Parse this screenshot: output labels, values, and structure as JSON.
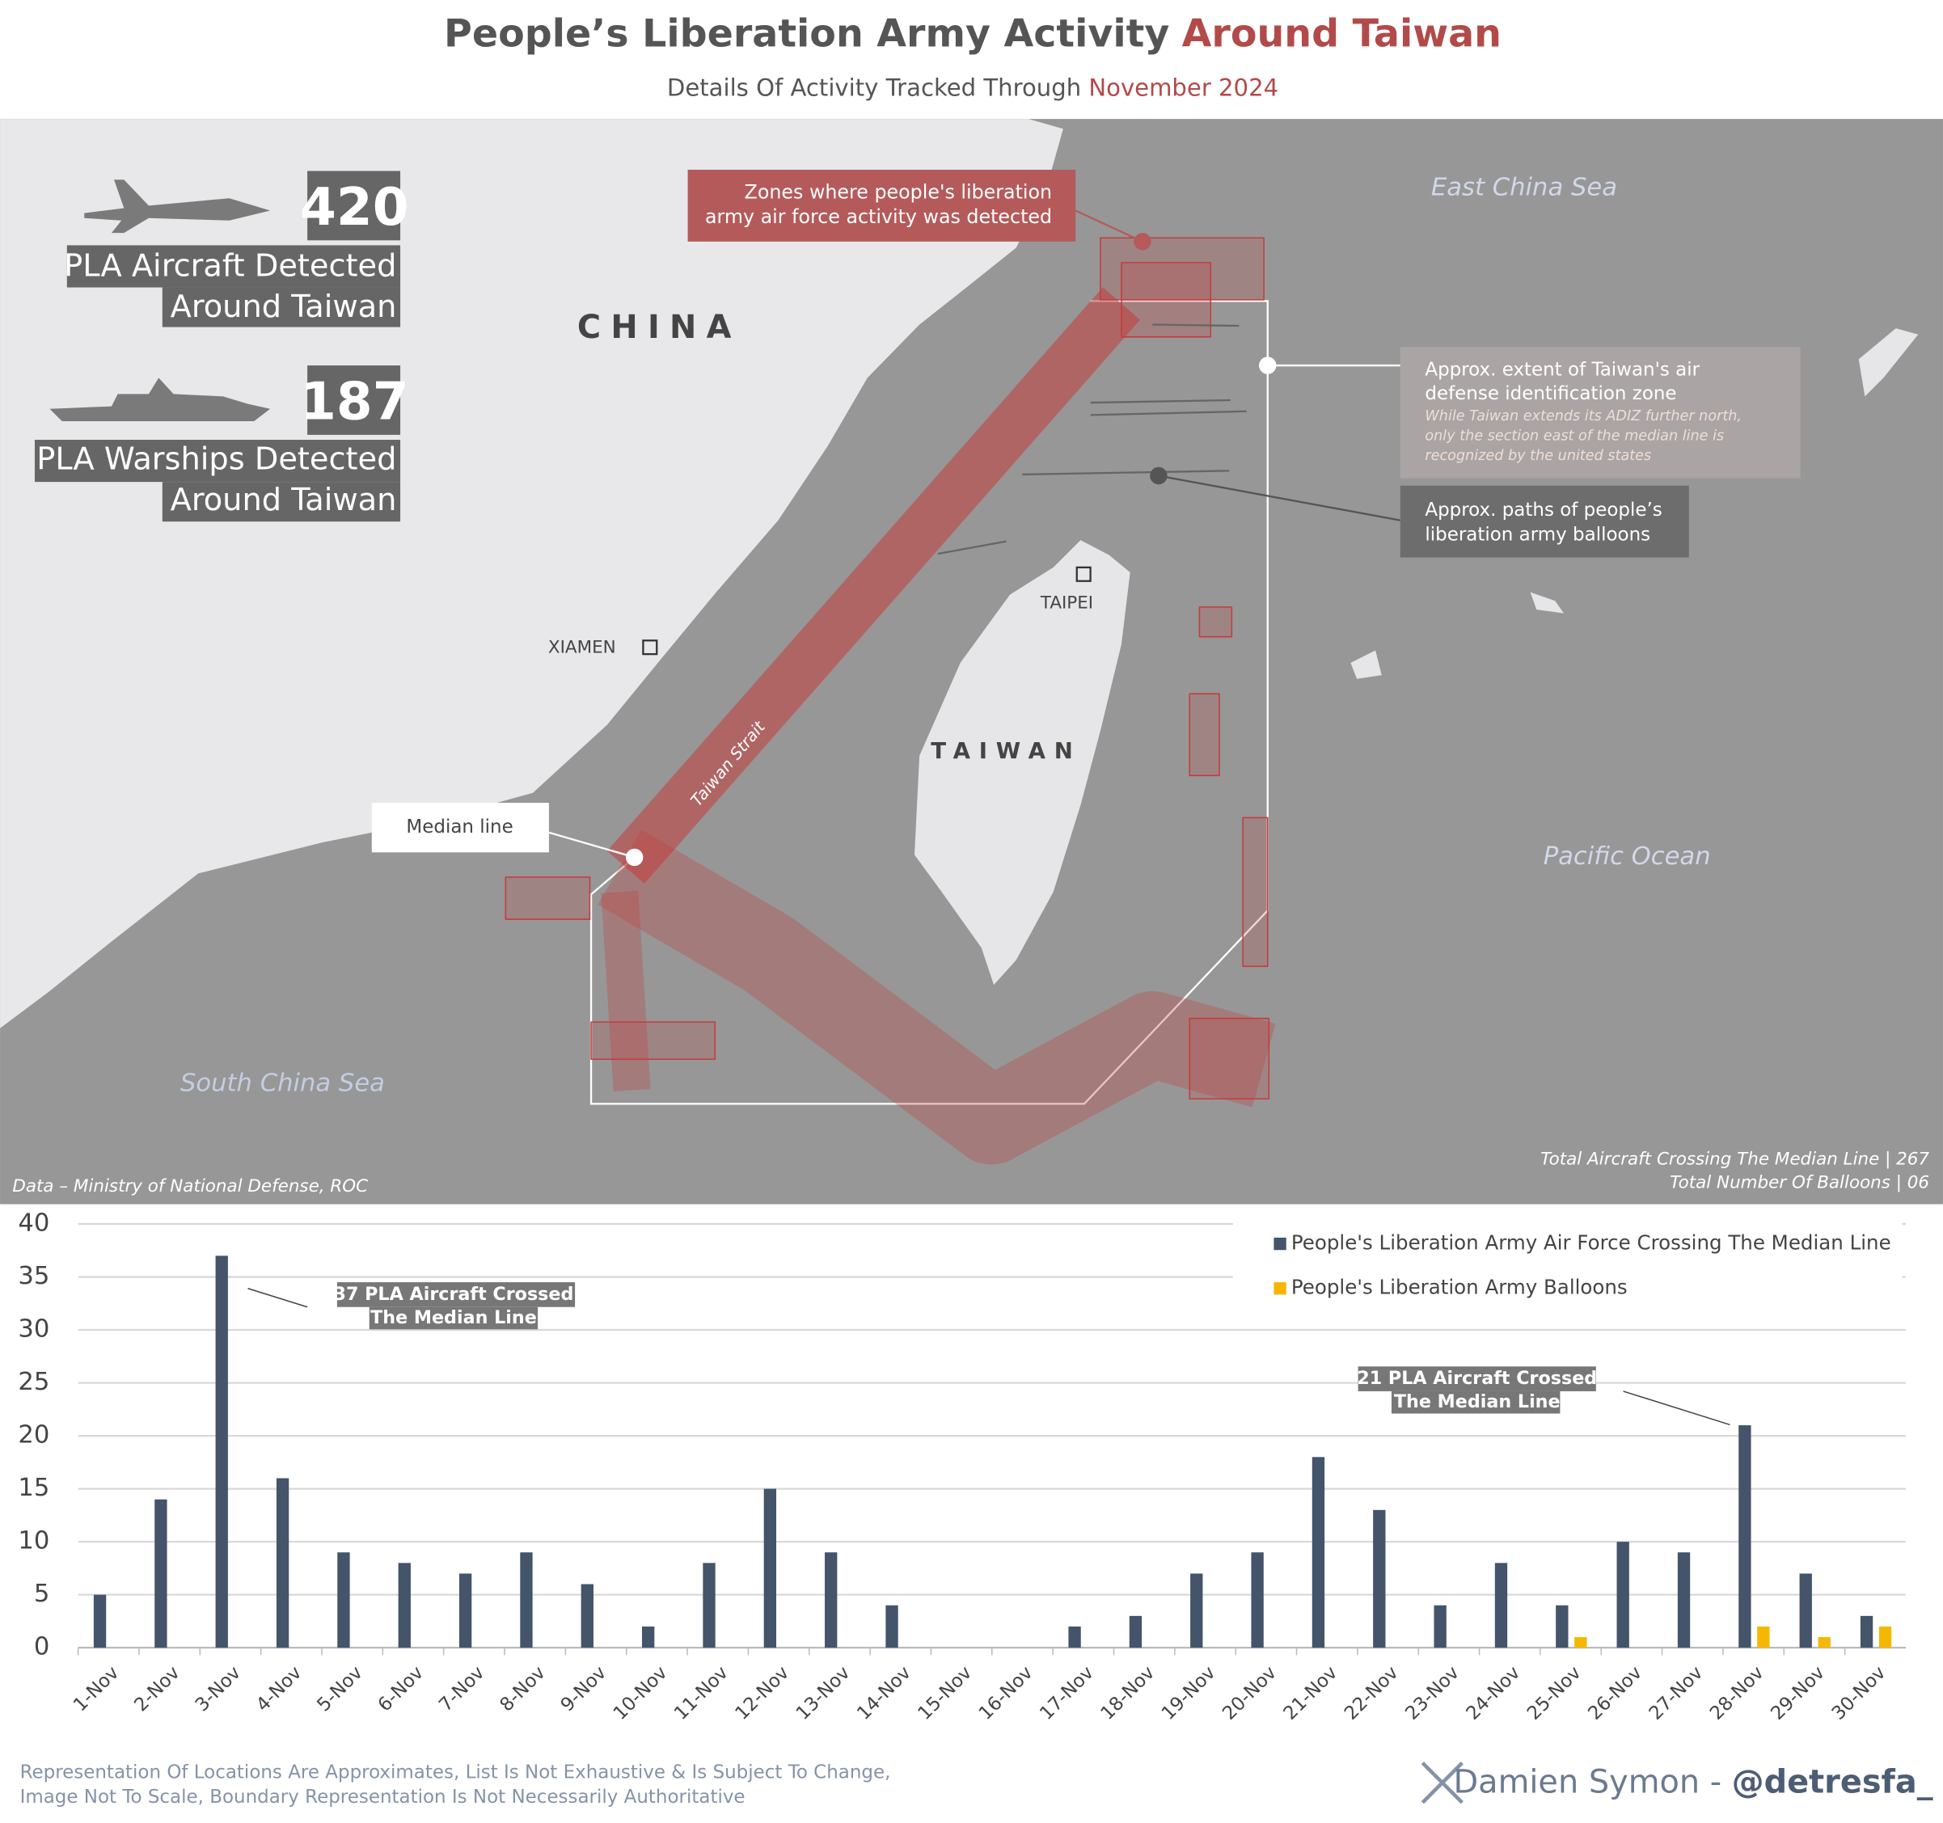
{
  "header": {
    "title": "People’s Liberation Army Activity",
    "title_highlight": "Around Taiwan",
    "subtitle": "Details Of Activity Tracked Through",
    "subtitle_highlight": "November 2024"
  },
  "map": {
    "aircraft_count": "420",
    "aircraft_label": [
      "PLA Aircraft Detected",
      "Around Taiwan"
    ],
    "warship_count": "187",
    "warship_label": [
      "PLA Warships Detected",
      "Around Taiwan"
    ],
    "zones_note": [
      "Zones where people's liberation",
      "army air force activity was detected"
    ],
    "adiz_note": [
      "Approx. extent of Taiwan's air",
      "defense identification zone"
    ],
    "adiz_subnote": [
      "While Taiwan extends its ADIZ further north,",
      "only the section east of the median line is",
      "recognized by the united states"
    ],
    "balloon_note": [
      "Approx. paths of people’s",
      "liberation army balloons"
    ],
    "median_line": "Median line",
    "places": {
      "china": "CHINA",
      "taiwan": "TAIWAN",
      "xiamen": "XIAMEN",
      "taipei": "TAIPEI",
      "strait": "Taiwan Strait",
      "east_china_sea": "East China Sea",
      "pacific_ocean": "Pacific Ocean",
      "south_china_sea": "South China Sea"
    },
    "source": "Data – Ministry of National Defense, ROC",
    "totals": [
      "Total Aircraft Crossing The Median Line | 267",
      "Total Number Of Balloons | 06"
    ]
  },
  "chart_data": {
    "type": "bar",
    "categories": [
      "1-Nov",
      "2-Nov",
      "3-Nov",
      "4-Nov",
      "5-Nov",
      "6-Nov",
      "7-Nov",
      "8-Nov",
      "9-Nov",
      "10-Nov",
      "11-Nov",
      "12-Nov",
      "13-Nov",
      "14-Nov",
      "15-Nov",
      "16-Nov",
      "17-Nov",
      "18-Nov",
      "19-Nov",
      "20-Nov",
      "21-Nov",
      "22-Nov",
      "23-Nov",
      "24-Nov",
      "25-Nov",
      "26-Nov",
      "27-Nov",
      "28-Nov",
      "29-Nov",
      "30-Nov"
    ],
    "series": [
      {
        "name": "People's Liberation Army Air Force Crossing The Median Line",
        "color": "#44546a",
        "values": [
          5,
          14,
          37,
          16,
          9,
          8,
          7,
          9,
          6,
          2,
          8,
          15,
          9,
          4,
          0,
          0,
          2,
          3,
          7,
          9,
          18,
          13,
          4,
          8,
          4,
          10,
          9,
          21,
          7,
          3
        ]
      },
      {
        "name": "People's Liberation Army Balloons",
        "color": "#f5b800",
        "values": [
          0,
          0,
          0,
          0,
          0,
          0,
          0,
          0,
          0,
          0,
          0,
          0,
          0,
          0,
          0,
          0,
          0,
          0,
          0,
          0,
          0,
          0,
          0,
          0,
          1,
          0,
          0,
          2,
          1,
          2
        ]
      }
    ],
    "ylim": [
      0,
      40
    ],
    "yticks": [
      0,
      5,
      10,
      15,
      20,
      25,
      30,
      35,
      40
    ],
    "grid": true,
    "annotations": [
      [
        "37 PLA Aircraft Crossed",
        "The Median Line"
      ],
      [
        "21 PLA Aircraft Crossed",
        "The Median Line"
      ]
    ]
  },
  "footer": {
    "disclaimer": [
      "Representation Of Locations Are Approximates, List Is Not Exhaustive & Is Subject To Change,",
      "Image Not To Scale, Boundary Representation Is Not Necessarily Authoritative"
    ],
    "credit": "Damien Symon - ",
    "handle": "@detresfa_"
  }
}
